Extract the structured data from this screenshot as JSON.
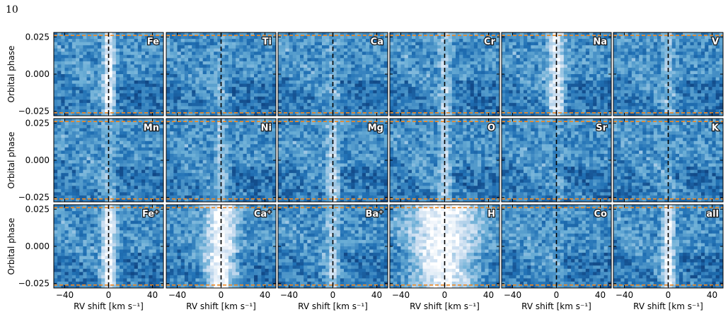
{
  "page": {
    "number": "10"
  },
  "chart_data": {
    "type": "heatmap",
    "layout": {
      "rows": 3,
      "cols": 6
    },
    "xlabel": "RV shift [km s⁻¹]",
    "ylabel": "Orbital phase",
    "xlim": [
      -50,
      50
    ],
    "ylim": [
      -0.028,
      0.028
    ],
    "xticks": [
      -40,
      0,
      40
    ],
    "yticks": [
      0.025,
      0.0,
      -0.025
    ],
    "ytick_labels": [
      "0.025",
      "0.000",
      "−0.025"
    ],
    "xtick_labels": [
      "−40",
      "0",
      "40"
    ],
    "reference_lines": {
      "rv_zero": 0,
      "transit_limits": [
        0.026,
        -0.026
      ],
      "rv_line_color": "#000000",
      "transit_line_color": "#f08a24"
    },
    "colormap": [
      "#08306b",
      "#2171b5",
      "#6baed6",
      "#c6dbef",
      "#ffffff"
    ],
    "panels": [
      {
        "label": "Fe",
        "signal": 0.9,
        "width": 5
      },
      {
        "label": "Ti",
        "signal": 0.15,
        "width": 5
      },
      {
        "label": "Ca",
        "signal": 0.2,
        "width": 5
      },
      {
        "label": "Cr",
        "signal": 0.5,
        "width": 5
      },
      {
        "label": "Na",
        "signal": 0.85,
        "width": 7
      },
      {
        "label": "V",
        "signal": 0.35,
        "width": 5
      },
      {
        "label": "Mn",
        "signal": 0.3,
        "width": 5
      },
      {
        "label": "Ni",
        "signal": 0.45,
        "width": 5
      },
      {
        "label": "Mg",
        "signal": 0.6,
        "width": 5
      },
      {
        "label": "O",
        "signal": 0.55,
        "width": 5
      },
      {
        "label": "Sr",
        "signal": 0.1,
        "width": 5
      },
      {
        "label": "K",
        "signal": 0.1,
        "width": 5
      },
      {
        "label": "Fe⁺",
        "signal": 0.95,
        "width": 6
      },
      {
        "label": "Ca⁺",
        "signal": 1.0,
        "width": 14
      },
      {
        "label": "Ba⁺",
        "signal": 0.5,
        "width": 6
      },
      {
        "label": "H",
        "signal": 1.0,
        "width": 30
      },
      {
        "label": "Co",
        "signal": 0.1,
        "width": 5
      },
      {
        "label": "all",
        "signal": 0.95,
        "width": 5
      }
    ]
  }
}
